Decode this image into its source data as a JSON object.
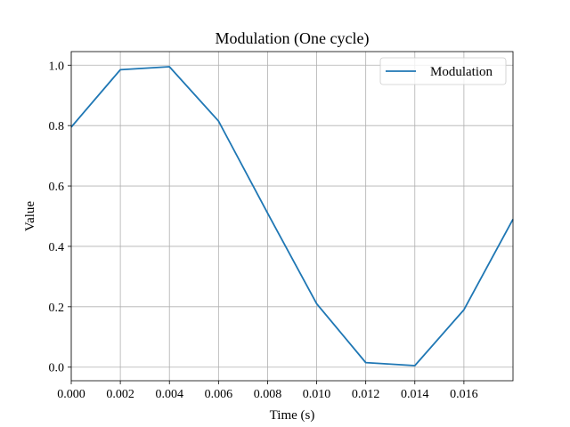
{
  "chart_data": {
    "type": "line",
    "title": "Modulation (One cycle)",
    "xlabel": "Time (s)",
    "ylabel": "Value",
    "xlim": [
      0.0,
      0.018
    ],
    "ylim": [
      -0.045,
      1.045
    ],
    "xticks": [
      0.0,
      0.002,
      0.004,
      0.006,
      0.008,
      0.01,
      0.012,
      0.014,
      0.016
    ],
    "xtick_labels": [
      "0.000",
      "0.002",
      "0.004",
      "0.006",
      "0.008",
      "0.010",
      "0.012",
      "0.014",
      "0.016"
    ],
    "yticks": [
      0.0,
      0.2,
      0.4,
      0.6,
      0.8,
      1.0
    ],
    "ytick_labels": [
      "0.0",
      "0.2",
      "0.4",
      "0.6",
      "0.8",
      "1.0"
    ],
    "grid": true,
    "legend_position": "top-right",
    "series": [
      {
        "name": "Modulation",
        "color": "#1f77b4",
        "x": [
          0.0,
          0.002,
          0.004,
          0.006,
          0.008,
          0.01,
          0.012,
          0.014,
          0.016,
          0.018
        ],
        "y": [
          0.795,
          0.985,
          0.995,
          0.815,
          0.51,
          0.21,
          0.015,
          0.005,
          0.19,
          0.49
        ]
      }
    ]
  }
}
